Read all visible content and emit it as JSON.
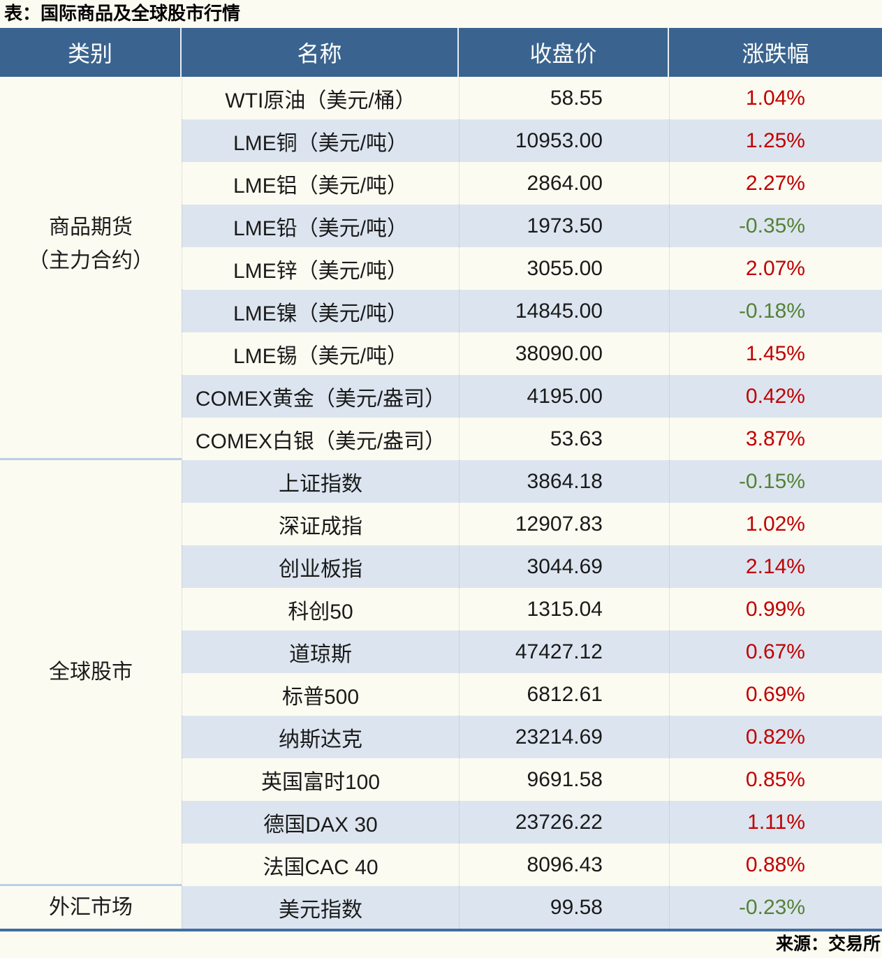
{
  "title": "表：国际商品及全球股市行情",
  "source": "来源：交易所",
  "header": {
    "category": "类别",
    "name": "名称",
    "close": "收盘价",
    "change": "涨跌幅"
  },
  "colors": {
    "header_bg": "#3a648f",
    "header_text": "#ffffff",
    "stripe_row_bg": "#dce5ef",
    "positive_change": "#c00000",
    "negative_change": "#548235",
    "section_divider": "#b9cfe3",
    "table_bottom_border": "#3f6da1",
    "page_bg": "#fcfbf1"
  },
  "sections": [
    {
      "category_lines": [
        "商品期货",
        "（主力合约）"
      ],
      "rows": [
        {
          "name": "WTI原油（美元/桶）",
          "close": "58.55",
          "change": "1.04%",
          "dir": "up"
        },
        {
          "name": "LME铜（美元/吨）",
          "close": "10953.00",
          "change": "1.25%",
          "dir": "up"
        },
        {
          "name": "LME铝（美元/吨）",
          "close": "2864.00",
          "change": "2.27%",
          "dir": "up"
        },
        {
          "name": "LME铅（美元/吨）",
          "close": "1973.50",
          "change": "-0.35%",
          "dir": "down"
        },
        {
          "name": "LME锌（美元/吨）",
          "close": "3055.00",
          "change": "2.07%",
          "dir": "up"
        },
        {
          "name": "LME镍（美元/吨）",
          "close": "14845.00",
          "change": "-0.18%",
          "dir": "down"
        },
        {
          "name": "LME锡（美元/吨）",
          "close": "38090.00",
          "change": "1.45%",
          "dir": "up"
        },
        {
          "name": "COMEX黄金（美元/盎司）",
          "close": "4195.00",
          "change": "0.42%",
          "dir": "up"
        },
        {
          "name": "COMEX白银（美元/盎司）",
          "close": "53.63",
          "change": "3.87%",
          "dir": "up"
        }
      ]
    },
    {
      "category_lines": [
        "全球股市"
      ],
      "rows": [
        {
          "name": "上证指数",
          "close": "3864.18",
          "change": "-0.15%",
          "dir": "down"
        },
        {
          "name": "深证成指",
          "close": "12907.83",
          "change": "1.02%",
          "dir": "up"
        },
        {
          "name": "创业板指",
          "close": "3044.69",
          "change": "2.14%",
          "dir": "up"
        },
        {
          "name": "科创50",
          "close": "1315.04",
          "change": "0.99%",
          "dir": "up"
        },
        {
          "name": "道琼斯",
          "close": "47427.12",
          "change": "0.67%",
          "dir": "up"
        },
        {
          "name": "标普500",
          "close": "6812.61",
          "change": "0.69%",
          "dir": "up"
        },
        {
          "name": "纳斯达克",
          "close": "23214.69",
          "change": "0.82%",
          "dir": "up"
        },
        {
          "name": "英国富时100",
          "close": "9691.58",
          "change": "0.85%",
          "dir": "up"
        },
        {
          "name": "德国DAX 30",
          "close": "23726.22",
          "change": "1.11%",
          "dir": "up"
        },
        {
          "name": "法国CAC 40",
          "close": "8096.43",
          "change": "0.88%",
          "dir": "up"
        }
      ]
    },
    {
      "category_lines": [
        "外汇市场"
      ],
      "rows": [
        {
          "name": "美元指数",
          "close": "99.58",
          "change": "-0.23%",
          "dir": "down"
        }
      ]
    }
  ]
}
